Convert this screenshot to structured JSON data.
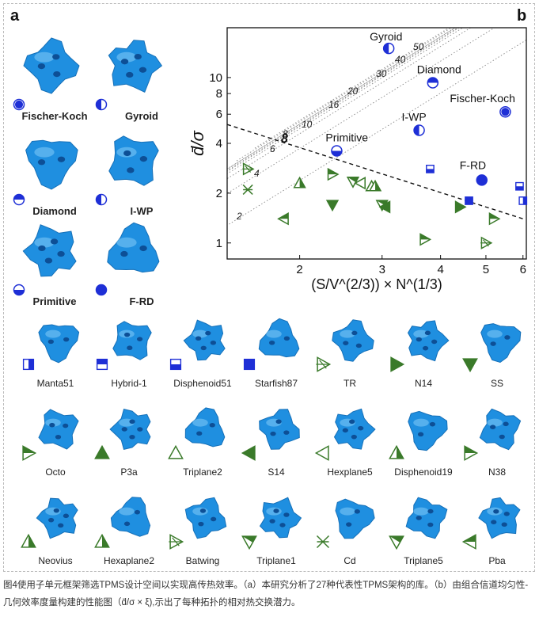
{
  "panels": {
    "a": "a",
    "b": "b"
  },
  "top_structures": [
    {
      "name": "Fischer-Koch",
      "symbol": "circle-full"
    },
    {
      "name": "Gyroid",
      "symbol": "circle-half-left"
    },
    {
      "name": "Diamond",
      "symbol": "circle-half-top"
    },
    {
      "name": "I-WP",
      "symbol": "circle-half-left"
    },
    {
      "name": "Primitive",
      "symbol": "circle-half-bottom"
    },
    {
      "name": "F-RD",
      "symbol": "circle-solid"
    }
  ],
  "grid_rows": [
    [
      {
        "name": "Manta51",
        "symbol": "square-half-right"
      },
      {
        "name": "Hybrid-1",
        "symbol": "square-half-top"
      },
      {
        "name": "Disphenoid51",
        "symbol": "square-half-bottom"
      },
      {
        "name": "Starfish87",
        "symbol": "square-solid"
      },
      {
        "name": "TR",
        "symbol": "tri-right-cross"
      },
      {
        "name": "N14",
        "symbol": "tri-right-solid"
      },
      {
        "name": "SS",
        "symbol": "tri-down-solid"
      }
    ],
    [
      {
        "name": "Octo",
        "symbol": "tri-right-half"
      },
      {
        "name": "P3a",
        "symbol": "tri-up-solid"
      },
      {
        "name": "Triplane2",
        "symbol": "tri-up-open"
      },
      {
        "name": "S14",
        "symbol": "tri-left-solid"
      },
      {
        "name": "Hexplane5",
        "symbol": "tri-left-open"
      },
      {
        "name": "Disphenoid19",
        "symbol": "tri-up-half"
      },
      {
        "name": "N38",
        "symbol": "tri-right-half2"
      }
    ],
    [
      {
        "name": "Neovius",
        "symbol": "tri-up-half"
      },
      {
        "name": "Hexaplane2",
        "symbol": "tri-up-half-left"
      },
      {
        "name": "Batwing",
        "symbol": "tri-right-cross"
      },
      {
        "name": "Triplane1",
        "symbol": "tri-down-half"
      },
      {
        "name": "Cd",
        "symbol": "x-cross"
      },
      {
        "name": "Triplane5",
        "symbol": "tri-down-half-left"
      },
      {
        "name": "Pba",
        "symbol": "tri-left-half"
      }
    ]
  ],
  "colors": {
    "blue": "#1e2fd6",
    "green": "#3a7a2a",
    "structure_blue": "#1f8fe0"
  },
  "chart_data": {
    "type": "scatter",
    "xlabel": "(S/V^(2/3)) × N^(1/3)",
    "ylabel": "d̄/σ",
    "xlim": [
      1.4,
      6.1
    ],
    "ylim": [
      0.8,
      20
    ],
    "xscale": "log",
    "yscale": "log",
    "xticks": [
      "2",
      "3",
      "4",
      "5",
      "6"
    ],
    "yticks": [
      "1",
      "2",
      "4",
      "6",
      "8",
      "10"
    ],
    "contour_labels": [
      "2",
      "4",
      "6",
      "8",
      "10",
      "16",
      "20",
      "30",
      "40",
      "50"
    ],
    "named_points": [
      {
        "name": "Gyroid",
        "x": 3.1,
        "y": 15.0
      },
      {
        "name": "Diamond",
        "x": 3.85,
        "y": 9.3
      },
      {
        "name": "Fischer-Koch",
        "x": 5.5,
        "y": 6.2
      },
      {
        "name": "I-WP",
        "x": 3.6,
        "y": 4.8
      },
      {
        "name": "Primitive",
        "x": 2.4,
        "y": 3.6
      },
      {
        "name": "F-RD",
        "x": 4.9,
        "y": 2.4
      }
    ],
    "blue_points": [
      {
        "x": 3.8,
        "y": 2.8
      },
      {
        "x": 4.6,
        "y": 1.8
      },
      {
        "x": 5.9,
        "y": 2.2
      },
      {
        "x": 6.0,
        "y": 1.8
      }
    ],
    "green_points": [
      {
        "x": 1.55,
        "y": 2.8
      },
      {
        "x": 1.55,
        "y": 2.1
      },
      {
        "x": 2.0,
        "y": 2.3
      },
      {
        "x": 2.35,
        "y": 2.6
      },
      {
        "x": 2.35,
        "y": 1.7
      },
      {
        "x": 2.6,
        "y": 2.35
      },
      {
        "x": 2.7,
        "y": 2.3
      },
      {
        "x": 2.85,
        "y": 2.2
      },
      {
        "x": 2.9,
        "y": 2.2
      },
      {
        "x": 3.0,
        "y": 1.7
      },
      {
        "x": 3.05,
        "y": 1.65
      },
      {
        "x": 1.85,
        "y": 1.4
      },
      {
        "x": 3.7,
        "y": 1.05
      },
      {
        "x": 4.4,
        "y": 1.65
      },
      {
        "x": 5.0,
        "y": 1.0
      },
      {
        "x": 5.2,
        "y": 1.4
      }
    ],
    "guide_line": {
      "name": "dashed",
      "points": [
        [
          1.4,
          5.2
        ],
        [
          6.0,
          1.4
        ]
      ]
    },
    "emphasis_label": "8"
  },
  "caption": "图4使用子单元框架筛选TPMS设计空间以实现高传热效率。（a）本研究分析了27种代表性TPMS架构的库。（b）由组合信道均匀性-几何效率度量构建的性能图（d̄/σ × ξ),示出了每种拓扑的相对热交换潜力。"
}
